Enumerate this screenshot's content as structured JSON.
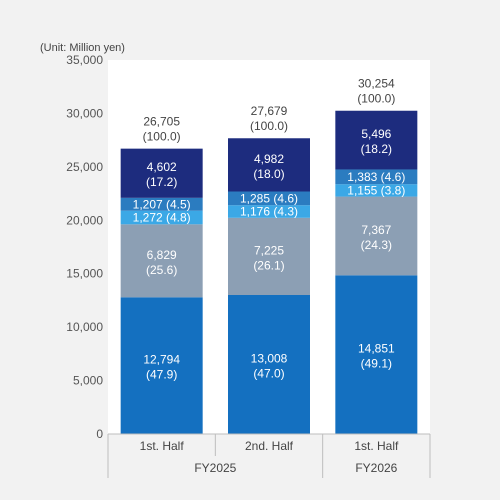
{
  "chart_data": {
    "type": "bar",
    "stacked": true,
    "unit_label": "(Unit: Million yen)",
    "ylim": [
      0,
      35000
    ],
    "yticks": [
      0,
      5000,
      10000,
      15000,
      20000,
      25000,
      30000,
      35000
    ],
    "ytick_labels": [
      "0",
      "5,000",
      "10,000",
      "15,000",
      "20,000",
      "25,000",
      "30,000",
      "35,000"
    ],
    "grid": false,
    "categories": [
      "1st. Half",
      "2nd. Half",
      "1st. Half"
    ],
    "groups": [
      {
        "label": "FY2025",
        "categories": [
          0,
          1
        ]
      },
      {
        "label": "FY2026",
        "categories": [
          2
        ]
      }
    ],
    "series": [
      {
        "color": "#1470c0",
        "values": [
          12794,
          13008,
          14851
        ],
        "labels": [
          "12,794",
          "13,008",
          "14,851"
        ],
        "shares": [
          "(47.9)",
          "(47.0)",
          "(49.1)"
        ],
        "label_style": "two-line"
      },
      {
        "color": "#8c9fb4",
        "values": [
          6829,
          7225,
          7367
        ],
        "labels": [
          "6,829",
          "7,225",
          "7,367"
        ],
        "shares": [
          "(25.6)",
          "(26.1)",
          "(24.3)"
        ],
        "label_style": "two-line"
      },
      {
        "color": "#3ba8e6",
        "values": [
          1272,
          1176,
          1155
        ],
        "labels": [
          "1,272",
          "1,176",
          "1,155"
        ],
        "shares": [
          "(4.8)",
          "(4.3)",
          "(3.8)"
        ],
        "label_style": "inline"
      },
      {
        "color": "#2b7cc0",
        "values": [
          1207,
          1285,
          1383
        ],
        "labels": [
          "1,207",
          "1,285",
          "1,383"
        ],
        "shares": [
          "(4.5)",
          "(4.6)",
          "(4.6)"
        ],
        "label_style": "inline"
      },
      {
        "color": "#1d2c7e",
        "values": [
          4602,
          4982,
          5496
        ],
        "labels": [
          "4,602",
          "4,982",
          "5,496"
        ],
        "shares": [
          "(17.2)",
          "(18.0)",
          "(18.2)"
        ],
        "label_style": "two-line"
      }
    ],
    "totals": [
      {
        "value": 26705,
        "label": "26,705",
        "share": "(100.0)"
      },
      {
        "value": 27679,
        "label": "27,679",
        "share": "(100.0)"
      },
      {
        "value": 30254,
        "label": "30,254",
        "share": "(100.0)"
      }
    ]
  }
}
